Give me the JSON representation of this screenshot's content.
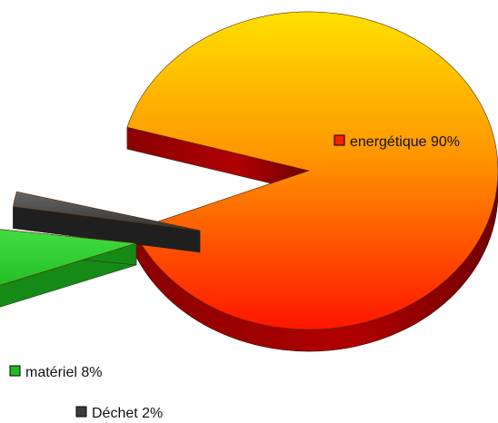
{
  "chart_data": {
    "type": "pie",
    "style": "3d-exploded",
    "title": "",
    "slices": [
      {
        "label": "energétique",
        "value": 90,
        "percent_label": "energétique 90%",
        "colors": {
          "top_start": "#ffe000",
          "top_end": "#ff1e00",
          "side": "#a80000"
        }
      },
      {
        "label": "matériel",
        "value": 8,
        "percent_label": "matériel 8%",
        "colors": {
          "top_start": "#33dd33",
          "top_end": "#22bb22",
          "side": "#158815"
        }
      },
      {
        "label": "Déchet",
        "value": 2,
        "percent_label": "Déchet 2%",
        "colors": {
          "top_start": "#555555",
          "top_end": "#3a3a3a",
          "side": "#1f1f1f"
        }
      }
    ],
    "legend": "beside each slice"
  }
}
